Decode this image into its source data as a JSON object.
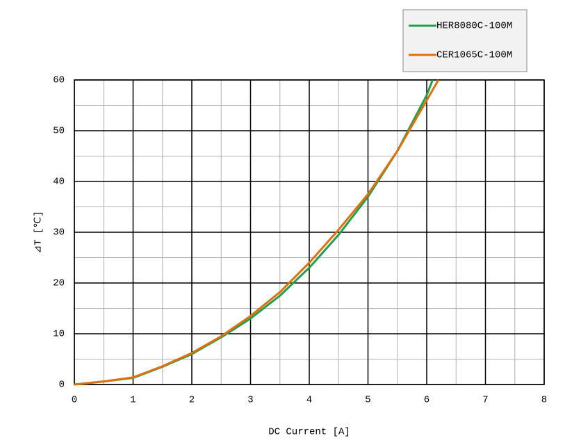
{
  "chart_data": {
    "type": "line",
    "xlabel": "DC Current [A]",
    "ylabel": "⊿T [℃]",
    "xlim": [
      0,
      8
    ],
    "xticks": [
      0,
      1,
      2,
      3,
      4,
      5,
      6,
      7,
      8
    ],
    "ylim": [
      0,
      60
    ],
    "yticks": [
      0,
      10,
      20,
      30,
      40,
      50,
      60
    ],
    "grid": true,
    "minor_grid": true,
    "legend": "upper right",
    "series": [
      {
        "name": "HER8080C-100M",
        "color": "#1ea04c",
        "x": [
          0,
          0.5,
          1,
          1.5,
          2,
          2.5,
          3,
          3.5,
          4,
          4.5,
          5,
          5.5,
          6,
          6.1
        ],
        "values": [
          0,
          0.6,
          1.3,
          3.5,
          6,
          9.3,
          13,
          17.5,
          23,
          29.5,
          37,
          46,
          57,
          60
        ]
      },
      {
        "name": "CER1065C-100M",
        "color": "#e0700e",
        "x": [
          0,
          0.5,
          1,
          1.5,
          2,
          2.5,
          3,
          3.5,
          4,
          4.5,
          5,
          5.5,
          6,
          6.2
        ],
        "values": [
          0,
          0.6,
          1.4,
          3.6,
          6.2,
          9.5,
          13.5,
          18.2,
          24,
          30.5,
          37.5,
          46,
          56,
          60
        ]
      }
    ]
  }
}
